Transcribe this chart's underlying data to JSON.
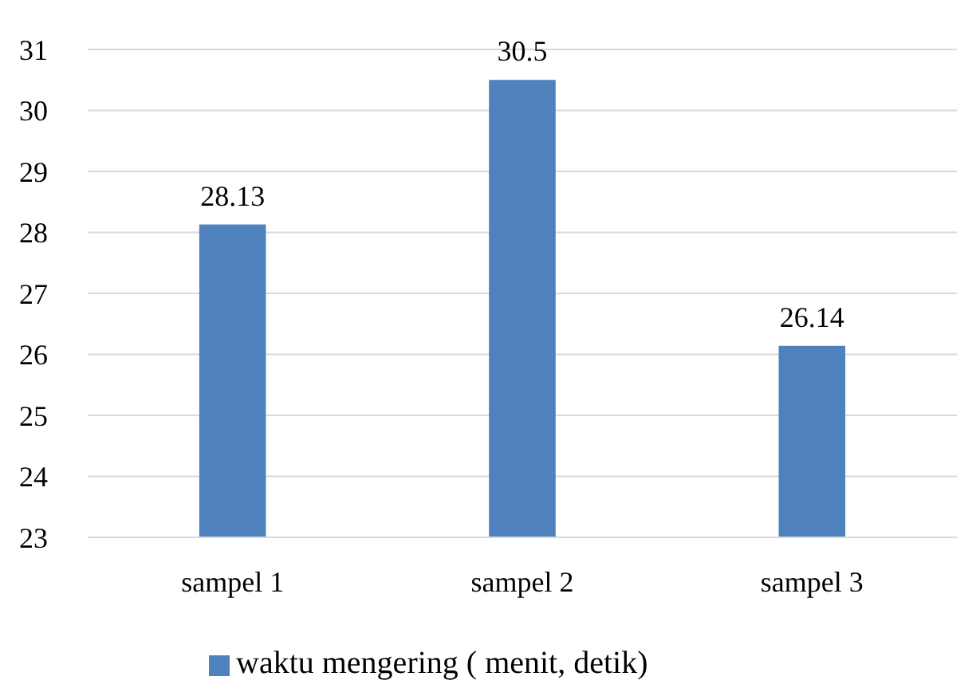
{
  "chart_data": {
    "type": "bar",
    "categories": [
      "sampel 1",
      "sampel 2",
      "sampel 3"
    ],
    "series": [
      {
        "name": "waktu mengering ( menit, detik)",
        "color": "#4f81bd",
        "values": [
          28.13,
          30.5,
          26.14
        ]
      }
    ],
    "ylim": [
      23,
      31
    ],
    "yticks": [
      23,
      24,
      25,
      26,
      27,
      28,
      29,
      30,
      31
    ],
    "grid": "y",
    "data_labels": true,
    "legend": "bottom"
  }
}
